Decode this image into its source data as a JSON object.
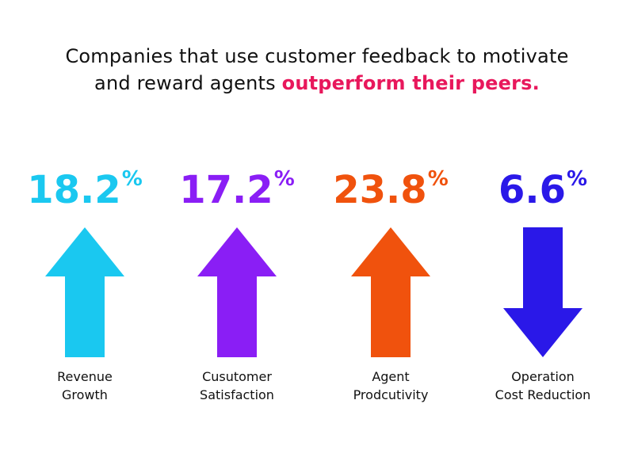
{
  "headline": {
    "line1": "Companies that use customer feedback to motivate",
    "line2_prefix": "and reward agents ",
    "line2_accent": "outperform their peers.",
    "accent_color": "#E8185C"
  },
  "chart_data": {
    "type": "bar",
    "title": "Companies that use customer feedback to motivate and reward agents outperform their peers.",
    "categories": [
      "Revenue Growth",
      "Cusutomer Satisfaction",
      "Agent Prodcutivity",
      "Operation Cost Reduction"
    ],
    "values": [
      18.2,
      17.2,
      23.8,
      6.6
    ],
    "unit": "%",
    "directions": [
      "up",
      "up",
      "up",
      "down"
    ]
  },
  "stats": [
    {
      "value": "18.2",
      "unit": "%",
      "label_line1": "Revenue",
      "label_line2": "Growth",
      "direction": "up",
      "color": "#1AC8F0",
      "arrow_icon": "arrow-up-icon"
    },
    {
      "value": "17.2",
      "unit": "%",
      "label_line1": "Cusutomer",
      "label_line2": "Satisfaction",
      "direction": "up",
      "color": "#8A1EF5",
      "arrow_icon": "arrow-up-icon"
    },
    {
      "value": "23.8",
      "unit": "%",
      "label_line1": "Agent",
      "label_line2": "Prodcutivity",
      "direction": "up",
      "color": "#F0520D",
      "arrow_icon": "arrow-up-icon"
    },
    {
      "value": "6.6",
      "unit": "%",
      "label_line1": "Operation",
      "label_line2": "Cost Reduction",
      "direction": "down",
      "color": "#2A18E8",
      "arrow_icon": "arrow-down-icon"
    }
  ]
}
